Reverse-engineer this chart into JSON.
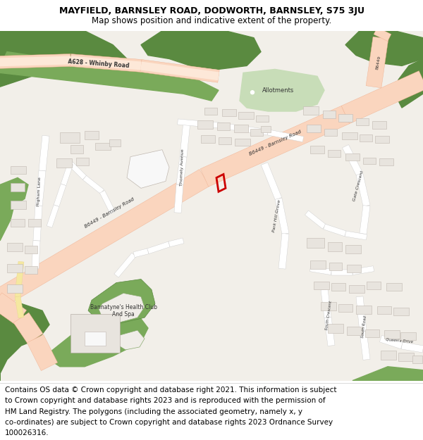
{
  "title_line1": "MAYFIELD, BARNSLEY ROAD, DODWORTH, BARNSLEY, S75 3JU",
  "title_line2": "Map shows position and indicative extent of the property.",
  "footer_lines": [
    "Contains OS data © Crown copyright and database right 2021. This information is subject",
    "to Crown copyright and database rights 2023 and is reproduced with the permission of",
    "HM Land Registry. The polygons (including the associated geometry, namely x, y",
    "co-ordinates) are subject to Crown copyright and database rights 2023 Ordnance Survey",
    "100026316."
  ],
  "title_fontsize": 9.0,
  "subtitle_fontsize": 8.5,
  "footer_fontsize": 7.5,
  "map_bg": "#f2efe9",
  "road_major": "#f0b090",
  "road_major_fill": "#fad5be",
  "road_minor": "#ffffff",
  "road_minor_outline": "#cccccc",
  "green_dark": "#5a8a40",
  "green_mid": "#7aaa5a",
  "green_light": "#b8d9a0",
  "allotment_green": "#c8ddb8",
  "building_fill": "#e8e4de",
  "building_outline": "#c0b8b0",
  "building_white": "#f8f8f8",
  "plot_red": "#cc0000",
  "yellow_road": "#f5e8a0",
  "rail_color": "#888888",
  "text_dark": "#333333",
  "text_road": "#444444"
}
